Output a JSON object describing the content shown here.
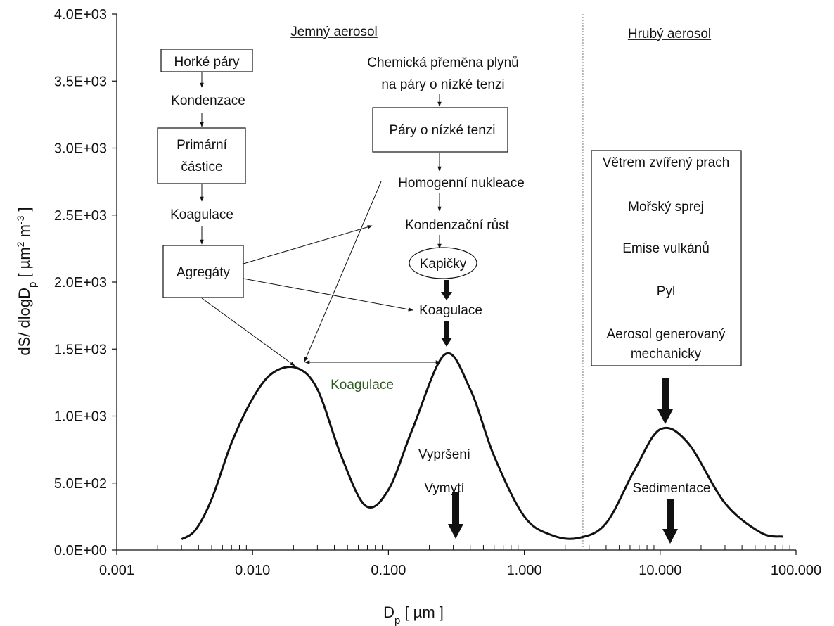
{
  "chart_data": {
    "type": "line",
    "x_scale": "log",
    "xlabel_main": "D",
    "xlabel_sub": "p",
    "xlabel_unit": " [ µm ]",
    "ylabel_main": "dS/ dlogD",
    "ylabel_sub": "p",
    "ylabel_unit_a": " [ µm",
    "ylabel_sup_a": "2",
    "ylabel_unit_b": " m",
    "ylabel_sup_b": "-3",
    "ylabel_unit_c": " ]",
    "xlim": [
      0.001,
      100
    ],
    "ylim": [
      0,
      4000
    ],
    "x_ticks": [
      0.001,
      0.01,
      0.1,
      1,
      10,
      100
    ],
    "x_tick_labels": [
      "0.001",
      "0.010",
      "0.100",
      "1.000",
      "10.000",
      "100.000"
    ],
    "y_ticks": [
      0,
      500,
      1000,
      1500,
      2000,
      2500,
      3000,
      3500,
      4000
    ],
    "y_tick_labels": [
      "0.0E+00",
      "5.0E+02",
      "1.0E+03",
      "1.5E+03",
      "2.0E+03",
      "2.5E+03",
      "3.0E+03",
      "3.5E+03",
      "4.0E+03"
    ],
    "series": [
      {
        "x": [
          0.003,
          0.0038,
          0.005,
          0.007,
          0.01,
          0.014,
          0.021,
          0.03,
          0.045,
          0.068,
          0.1,
          0.15,
          0.26,
          0.4,
          0.6,
          1.0,
          1.6,
          2.5,
          4.0,
          6.5,
          10,
          16,
          30,
          55,
          80
        ],
        "y": [
          80,
          150,
          380,
          800,
          1130,
          1320,
          1360,
          1200,
          700,
          330,
          450,
          900,
          1460,
          1200,
          700,
          250,
          110,
          90,
          200,
          600,
          900,
          800,
          350,
          130,
          100
        ]
      }
    ],
    "divider_x": 2.7
  },
  "labels": {
    "fine_aerosol": "Jemný aerosol",
    "coarse_aerosol": "Hrubý aerosol",
    "hot_vapors": "Horké páry",
    "condensation": "Kondenzace",
    "primary_1": "Primární",
    "primary_2": "částice",
    "coagulation_left": "Koagulace",
    "aggregates": "Agregáty",
    "chem_1": "Chemická přeměna plynů",
    "chem_2": "na páry o nízké tenzi",
    "low_tension": "Páry o nízké tenzi",
    "homog": "Homogenní nukleace",
    "cond_growth": "Kondenzační růst",
    "droplets": "Kapičky",
    "coagulation_mid": "Koagulace",
    "coagulation_peaks": "Koagulace",
    "rainout": "Vypršení",
    "washout": "Vymytí",
    "coarse_1": "Větrem zvířený prach",
    "coarse_2": "Mořský sprej",
    "coarse_3": "Emise vulkánů",
    "coarse_4": "Pyl",
    "coarse_5a": "Aerosol generovaný",
    "coarse_5b": "mechanicky",
    "sedimentation": "Sedimentace"
  }
}
